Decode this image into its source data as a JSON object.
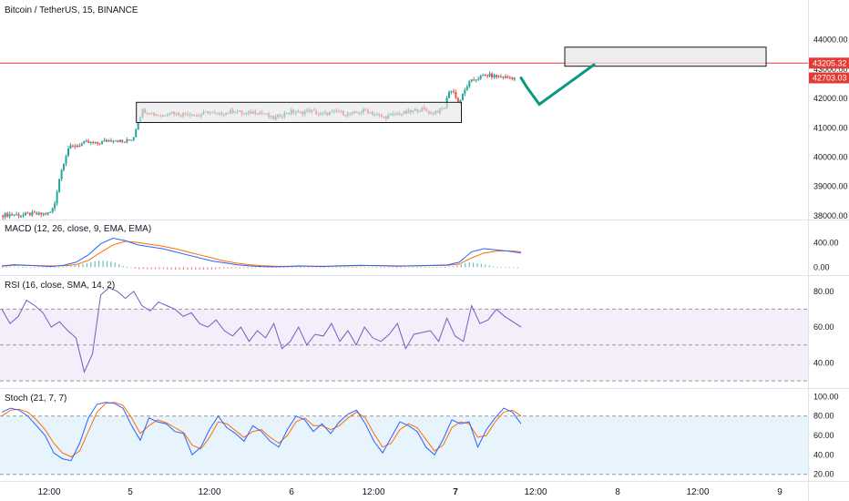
{
  "header": {
    "symbol_title": "Bitcoin / TetherUS, 15, BINANCE"
  },
  "colors": {
    "up": "#26a69a",
    "down": "#ef5350",
    "price_line": "#e53935",
    "macd_line": "#2962ff",
    "signal_line": "#ff6d00",
    "rsi_line": "#7e57c2",
    "rsi_band": "#f3eefa",
    "stoch_k": "#2962ff",
    "stoch_d": "#ff6d00",
    "stoch_band": "#e8f4fc",
    "projection": "#089981",
    "box_fill": "#e6e6e6",
    "box_stroke": "#131722"
  },
  "chart_data": [
    {
      "type": "candlestick",
      "title": "Bitcoin / TetherUS, 15, BINANCE",
      "y_ticks": [
        "44000.00",
        "43000.00",
        "42000.00",
        "41000.00",
        "40000.00",
        "39000.00",
        "38000.00"
      ],
      "ylim": [
        37900,
        44800
      ],
      "x_labels": [
        {
          "label": "12:00",
          "bold": false
        },
        {
          "label": "5",
          "bold": false
        },
        {
          "label": "12:00",
          "bold": false
        },
        {
          "label": "6",
          "bold": false
        },
        {
          "label": "12:00",
          "bold": false
        },
        {
          "label": "7",
          "bold": true
        },
        {
          "label": "12:00",
          "bold": false
        },
        {
          "label": "8",
          "bold": false
        },
        {
          "label": "12:00",
          "bold": false
        },
        {
          "label": "9",
          "bold": false
        }
      ],
      "close_path": [
        [
          0,
          38020
        ],
        [
          2,
          38050
        ],
        [
          4,
          38010
        ],
        [
          6,
          38060
        ],
        [
          8,
          38040
        ],
        [
          10,
          38080
        ],
        [
          11,
          38300
        ],
        [
          12,
          39200
        ],
        [
          13,
          39800
        ],
        [
          14,
          40300
        ],
        [
          16,
          40400
        ],
        [
          18,
          40500
        ],
        [
          20,
          40450
        ],
        [
          22,
          40550
        ],
        [
          24,
          40600
        ],
        [
          26,
          40500
        ],
        [
          28,
          40650
        ],
        [
          29,
          41200
        ],
        [
          30,
          41600
        ],
        [
          32,
          41500
        ],
        [
          34,
          41400
        ],
        [
          36,
          41550
        ],
        [
          38,
          41450
        ],
        [
          40,
          41500
        ],
        [
          42,
          41400
        ],
        [
          44,
          41550
        ],
        [
          46,
          41450
        ],
        [
          48,
          41500
        ],
        [
          50,
          41600
        ],
        [
          52,
          41450
        ],
        [
          54,
          41550
        ],
        [
          56,
          41500
        ],
        [
          58,
          41300
        ],
        [
          60,
          41450
        ],
        [
          62,
          41550
        ],
        [
          64,
          41500
        ],
        [
          66,
          41600
        ],
        [
          68,
          41450
        ],
        [
          70,
          41500
        ],
        [
          72,
          41550
        ],
        [
          74,
          41450
        ],
        [
          76,
          41500
        ],
        [
          78,
          41600
        ],
        [
          80,
          41450
        ],
        [
          82,
          41350
        ],
        [
          84,
          41450
        ],
        [
          86,
          41500
        ],
        [
          88,
          41550
        ],
        [
          90,
          41650
        ],
        [
          92,
          41500
        ],
        [
          94,
          41600
        ],
        [
          95,
          41700
        ],
        [
          96,
          42300
        ],
        [
          97,
          42200
        ],
        [
          98,
          41850
        ],
        [
          99,
          42150
        ],
        [
          100,
          42500
        ],
        [
          102,
          42700
        ],
        [
          104,
          42800
        ],
        [
          106,
          42750
        ],
        [
          108,
          42720
        ],
        [
          110,
          42703.03
        ]
      ],
      "current_price": "42703.03",
      "alert_price": "43205.32",
      "alert_line_value": 43205.32,
      "box_range": {
        "from_index": 29,
        "to_index": 98,
        "top": 41870,
        "bottom": 41180
      },
      "target_box": {
        "top": 43750,
        "bottom": 43100
      },
      "projection_path": [
        42703,
        42400,
        41800,
        43150
      ]
    },
    {
      "type": "line",
      "title": "MACD (12, 26, close, 9, EMA, EMA)",
      "y_ticks": [
        "400.00",
        "0.00"
      ],
      "ylim": [
        -100,
        700
      ],
      "series": [
        {
          "name": "MACD",
          "values": [
            20,
            40,
            30,
            20,
            10,
            30,
            80,
            200,
            380,
            470,
            430,
            360,
            330,
            300,
            250,
            200,
            150,
            100,
            70,
            40,
            20,
            10,
            5,
            10,
            20,
            15,
            10,
            20,
            25,
            30,
            25,
            20,
            15,
            20,
            25,
            30,
            35,
            80,
            250,
            300,
            280,
            260,
            230
          ]
        },
        {
          "name": "Signal",
          "values": [
            15,
            30,
            30,
            25,
            20,
            22,
            40,
            110,
            240,
            360,
            420,
            400,
            370,
            340,
            300,
            250,
            200,
            150,
            100,
            65,
            40,
            25,
            15,
            12,
            15,
            15,
            14,
            16,
            20,
            25,
            26,
            24,
            20,
            20,
            22,
            26,
            30,
            50,
            150,
            230,
            260,
            265,
            250
          ]
        }
      ]
    },
    {
      "type": "line",
      "title": "RSI (16, close, SMA, 14, 2)",
      "y_ticks": [
        "80.00",
        "60.00",
        "40.00"
      ],
      "ylim": [
        27,
        87
      ],
      "band": [
        30,
        70
      ],
      "midline": 50,
      "series": [
        {
          "name": "RSI",
          "values": [
            70,
            62,
            66,
            75,
            72,
            68,
            60,
            63,
            58,
            54,
            35,
            45,
            78,
            82,
            80,
            76,
            80,
            72,
            69,
            74,
            72,
            70,
            66,
            68,
            62,
            60,
            64,
            58,
            55,
            60,
            52,
            58,
            54,
            62,
            48,
            52,
            60,
            50,
            56,
            55,
            62,
            52,
            58,
            50,
            60,
            54,
            52,
            56,
            62,
            48,
            56,
            57,
            58,
            52,
            65,
            55,
            52,
            72,
            62,
            64,
            70,
            66,
            63,
            60
          ]
        }
      ]
    },
    {
      "type": "line",
      "title": "Stoch (21, 7, 7)",
      "y_ticks": [
        "100.00",
        "80.00",
        "60.00",
        "40.00",
        "20.00"
      ],
      "ylim": [
        15,
        105
      ],
      "band": [
        20,
        80
      ],
      "series": [
        {
          "name": "%K",
          "values": [
            84,
            88,
            86,
            80,
            70,
            60,
            42,
            36,
            34,
            52,
            78,
            92,
            94,
            93,
            88,
            70,
            55,
            78,
            74,
            72,
            64,
            62,
            40,
            48,
            66,
            80,
            68,
            62,
            54,
            70,
            64,
            54,
            48,
            66,
            80,
            76,
            64,
            72,
            62,
            74,
            82,
            86,
            72,
            54,
            42,
            58,
            74,
            70,
            64,
            48,
            40,
            56,
            76,
            72,
            74,
            48,
            66,
            78,
            88,
            84,
            72
          ]
        },
        {
          "name": "%D",
          "values": [
            80,
            86,
            87,
            84,
            76,
            66,
            52,
            42,
            38,
            44,
            64,
            84,
            93,
            94,
            91,
            78,
            62,
            70,
            76,
            73,
            68,
            63,
            50,
            46,
            58,
            74,
            72,
            65,
            58,
            64,
            66,
            58,
            52,
            60,
            74,
            78,
            70,
            70,
            66,
            70,
            78,
            84,
            78,
            62,
            48,
            52,
            66,
            72,
            68,
            56,
            44,
            50,
            68,
            74,
            72,
            58,
            60,
            74,
            84,
            86,
            80
          ]
        }
      ]
    }
  ]
}
